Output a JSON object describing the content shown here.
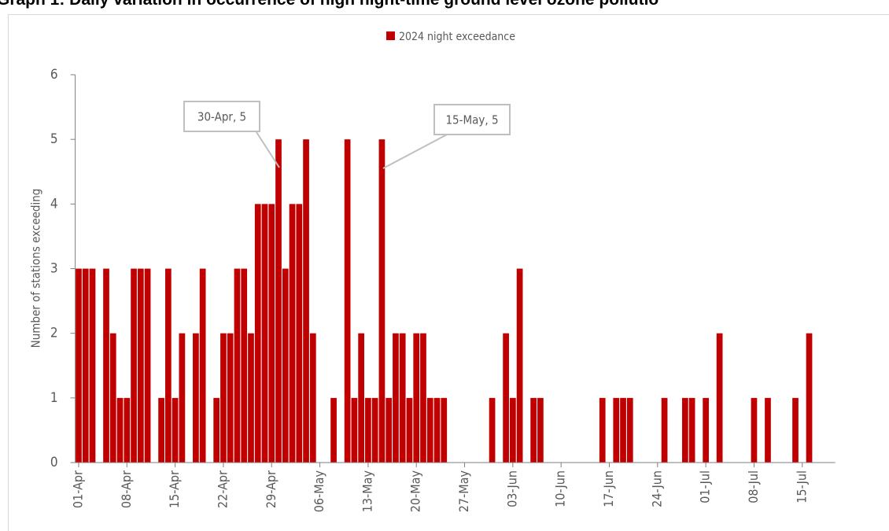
{
  "chart_data": {
    "type": "bar",
    "title": "Graph 1: Daily variation in occurrence of high night-time ground level ozone pollutio",
    "y_label": "Number of stations exceeding",
    "legend_position": "top",
    "series": [
      {
        "name": "2024 night exceedance",
        "color": "#c00000",
        "values": [
          3,
          3,
          3,
          0,
          3,
          2,
          1,
          1,
          3,
          3,
          3,
          0,
          1,
          3,
          1,
          2,
          0,
          2,
          3,
          0,
          1,
          2,
          2,
          3,
          3,
          2,
          4,
          4,
          4,
          5,
          3,
          4,
          4,
          5,
          2,
          0,
          0,
          1,
          0,
          5,
          1,
          2,
          1,
          1,
          5,
          1,
          2,
          2,
          1,
          2,
          2,
          1,
          1,
          1,
          0,
          0,
          0,
          0,
          0,
          0,
          1,
          0,
          2,
          1,
          3,
          0,
          1,
          1,
          0,
          0,
          0,
          0,
          0,
          0,
          0,
          0,
          1,
          0,
          1,
          1,
          1,
          0,
          0,
          0,
          0,
          1,
          0,
          0,
          1,
          1,
          0,
          1,
          0,
          2,
          0,
          0,
          0,
          0,
          1,
          0,
          1,
          0,
          0,
          0,
          1,
          0,
          2,
          0
        ]
      }
    ],
    "categories": [
      "01-Apr",
      null,
      null,
      null,
      null,
      null,
      null,
      "08-Apr",
      null,
      null,
      null,
      null,
      null,
      null,
      "15-Apr",
      null,
      null,
      null,
      null,
      null,
      null,
      "22-Apr",
      null,
      null,
      null,
      null,
      null,
      null,
      "29-Apr",
      null,
      null,
      null,
      null,
      null,
      null,
      "06-May",
      null,
      null,
      null,
      null,
      null,
      null,
      "13-May",
      null,
      null,
      null,
      null,
      null,
      null,
      "20-May",
      null,
      null,
      null,
      null,
      null,
      null,
      "27-May",
      null,
      null,
      null,
      null,
      null,
      null,
      "03-Jun",
      null,
      null,
      null,
      null,
      null,
      null,
      "10-Jun",
      null,
      null,
      null,
      null,
      null,
      null,
      "17-Jun",
      null,
      null,
      null,
      null,
      null,
      null,
      "24-Jun",
      null,
      null,
      null,
      null,
      null,
      null,
      "01-Jul",
      null,
      null,
      null,
      null,
      null,
      null,
      "08-Jul",
      null,
      null,
      null,
      null,
      null,
      null,
      "15-Jul",
      null,
      null
    ],
    "ylim": [
      0,
      6
    ],
    "yticks": [
      0,
      1,
      2,
      3,
      4,
      5,
      6
    ],
    "annotations": [
      {
        "text": "30-Apr, 5"
      },
      {
        "text": "15-May, 5"
      }
    ]
  }
}
